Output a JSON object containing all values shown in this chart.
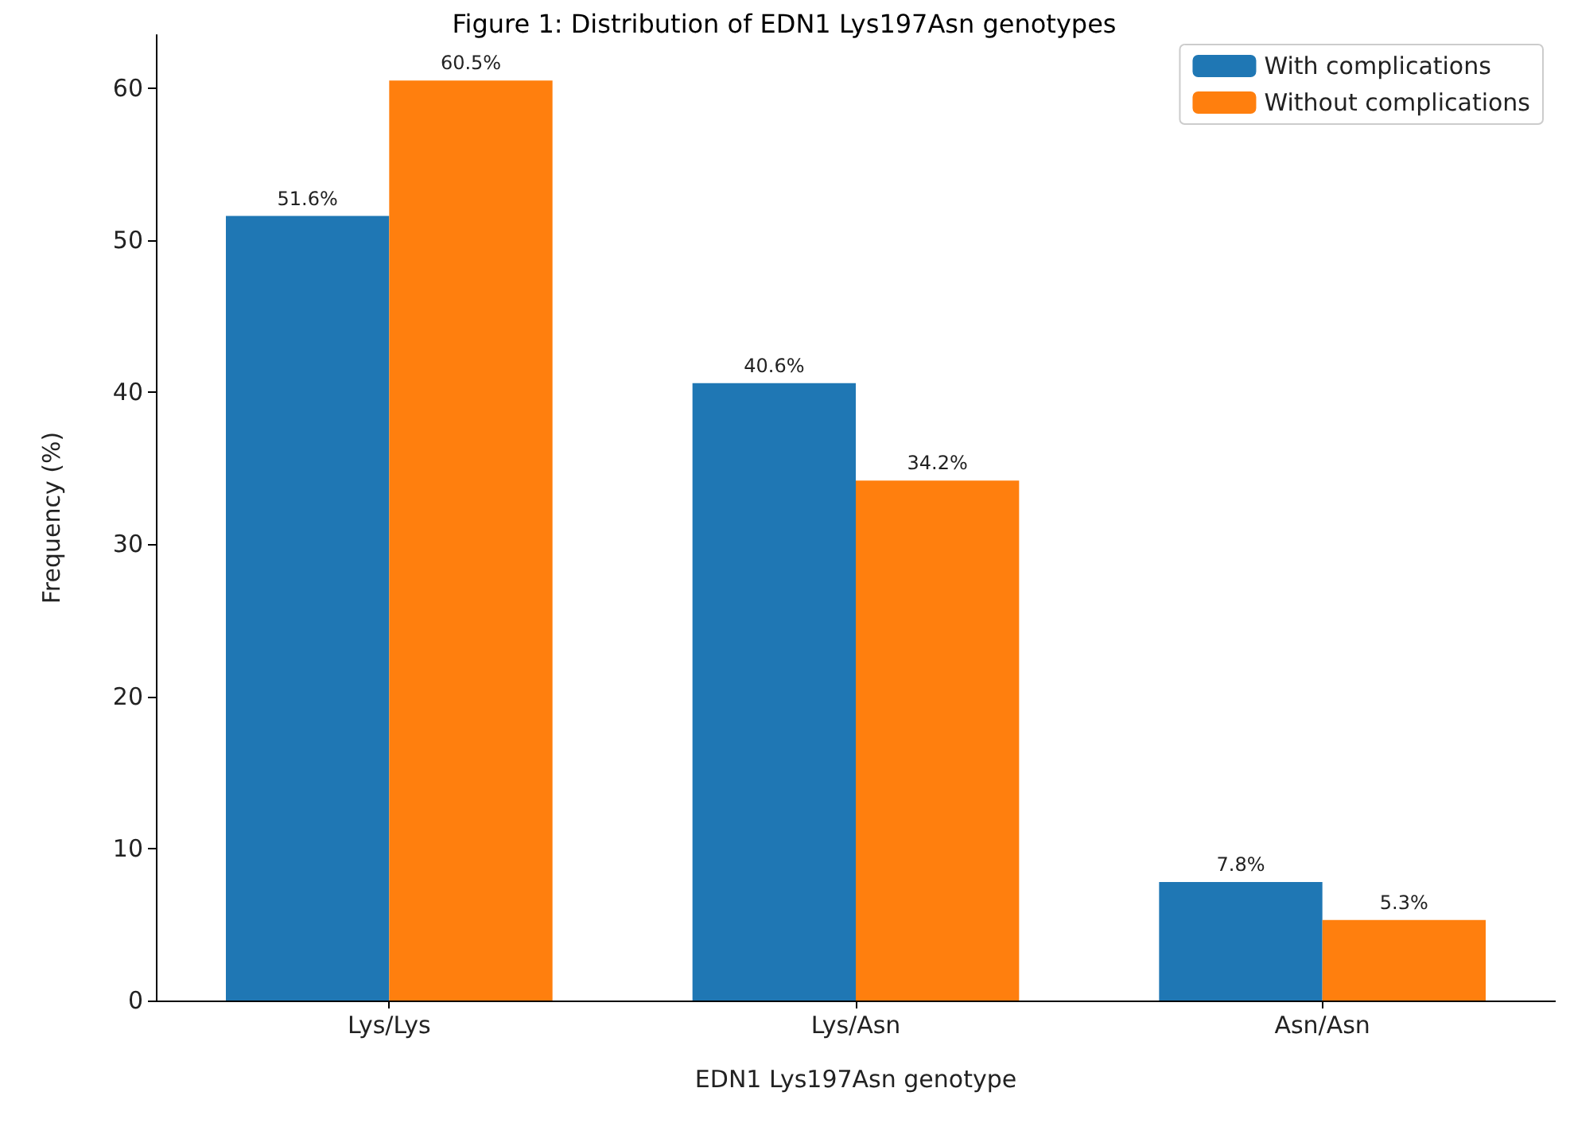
{
  "chart_data": {
    "type": "bar",
    "title": "Figure 1: Distribution of EDN1 Lys197Asn genotypes",
    "xlabel": "EDN1 Lys197Asn genotype",
    "ylabel": "Frequency (%)",
    "categories": [
      "Lys/Lys",
      "Lys/Asn",
      "Asn/Asn"
    ],
    "series": [
      {
        "name": "With complications",
        "color": "#1f77b4",
        "values": [
          51.6,
          40.6,
          7.8
        ],
        "value_labels": [
          "51.6%",
          "40.6%",
          "7.8%"
        ]
      },
      {
        "name": "Without complications",
        "color": "#ff7f0e",
        "values": [
          60.5,
          34.2,
          5.3
        ],
        "value_labels": [
          "60.5%",
          "34.2%",
          "5.3%"
        ]
      }
    ],
    "ylim": [
      0,
      63.5
    ],
    "yticks": [
      0,
      10,
      20,
      30,
      40,
      50,
      60
    ],
    "grid": false,
    "legend": "top right"
  }
}
